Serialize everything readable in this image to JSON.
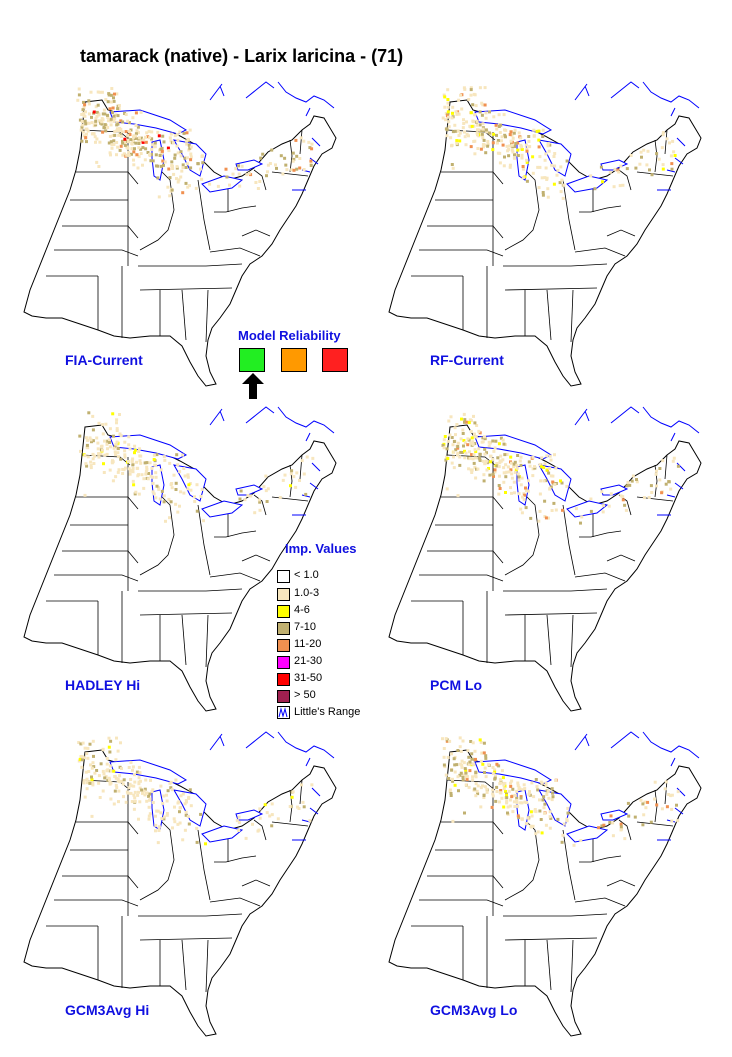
{
  "title": "tamarack (native) - Larix laricina - (71)",
  "panels": [
    {
      "id": "fia-current",
      "label": "FIA-Current",
      "intensity": "high"
    },
    {
      "id": "rf-current",
      "label": "RF-Current",
      "intensity": "medium"
    },
    {
      "id": "hadley-hi",
      "label": "HADLEY Hi",
      "intensity": "low"
    },
    {
      "id": "pcm-lo",
      "label": "PCM Lo",
      "intensity": "medium"
    },
    {
      "id": "gcm3avg-hi",
      "label": "GCM3Avg Hi",
      "intensity": "low"
    },
    {
      "id": "gcm3avg-lo",
      "label": "GCM3Avg Lo",
      "intensity": "medium"
    }
  ],
  "model_reliability": {
    "title": "Model Reliability",
    "levels": [
      {
        "color": "#22ee22",
        "selected": true
      },
      {
        "color": "#ff9900",
        "selected": false
      },
      {
        "color": "#ff2020",
        "selected": false
      }
    ]
  },
  "legend": {
    "title": "Imp. Values",
    "items": [
      {
        "label": "< 1.0",
        "color": "#ffffff"
      },
      {
        "label": "1.0-3",
        "color": "#f7e6be"
      },
      {
        "label": "4-6",
        "color": "#ffff00"
      },
      {
        "label": "7-10",
        "color": "#c0b070"
      },
      {
        "label": "11-20",
        "color": "#f09050"
      },
      {
        "label": "21-30",
        "color": "#ff00ff"
      },
      {
        "label": "31-50",
        "color": "#ff0000"
      },
      {
        "label": "> 50",
        "color": "#a02050"
      }
    ],
    "range_label": "Little's Range"
  },
  "colors": {
    "label_text": "#1010e0",
    "state_outline": "#000000",
    "range_outline": "#0000ff",
    "low": "#f7e6be",
    "mid": "#ffff00",
    "tan": "#c0b070",
    "orange": "#f09050",
    "red": "#ff0000"
  }
}
